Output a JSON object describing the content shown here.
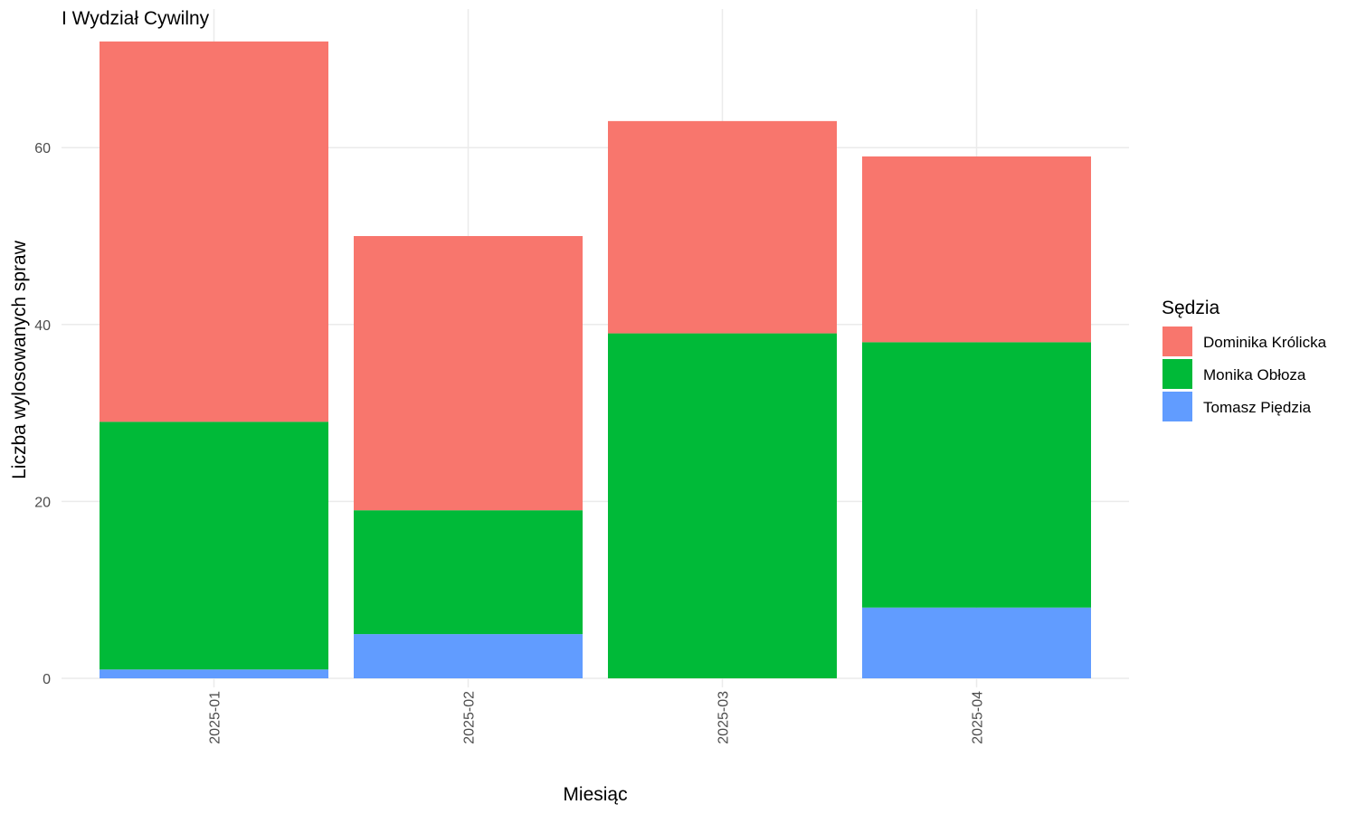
{
  "chart_data": {
    "type": "bar",
    "stacked": true,
    "title": "I Wydział Cywilny",
    "xlabel": "Miesiąc",
    "ylabel": "Liczba wylosowanych spraw",
    "categories": [
      "2025-01",
      "2025-02",
      "2025-03",
      "2025-04"
    ],
    "ylim": [
      0,
      72
    ],
    "yticks": [
      0,
      20,
      40,
      60
    ],
    "grid": true,
    "legend_title": "Sędzia",
    "legend_position": "right",
    "series": [
      {
        "name": "Tomasz Piędzia",
        "color": "#619CFF",
        "values": [
          1,
          5,
          0,
          8
        ]
      },
      {
        "name": "Monika Obłoza",
        "color": "#00BA38",
        "values": [
          28,
          14,
          39,
          30
        ]
      },
      {
        "name": "Dominika Królicka",
        "color": "#F8766D",
        "values": [
          43,
          31,
          24,
          21
        ]
      }
    ],
    "legend_order": [
      "Dominika Królicka",
      "Monika Obłoza",
      "Tomasz Piędzia"
    ]
  }
}
